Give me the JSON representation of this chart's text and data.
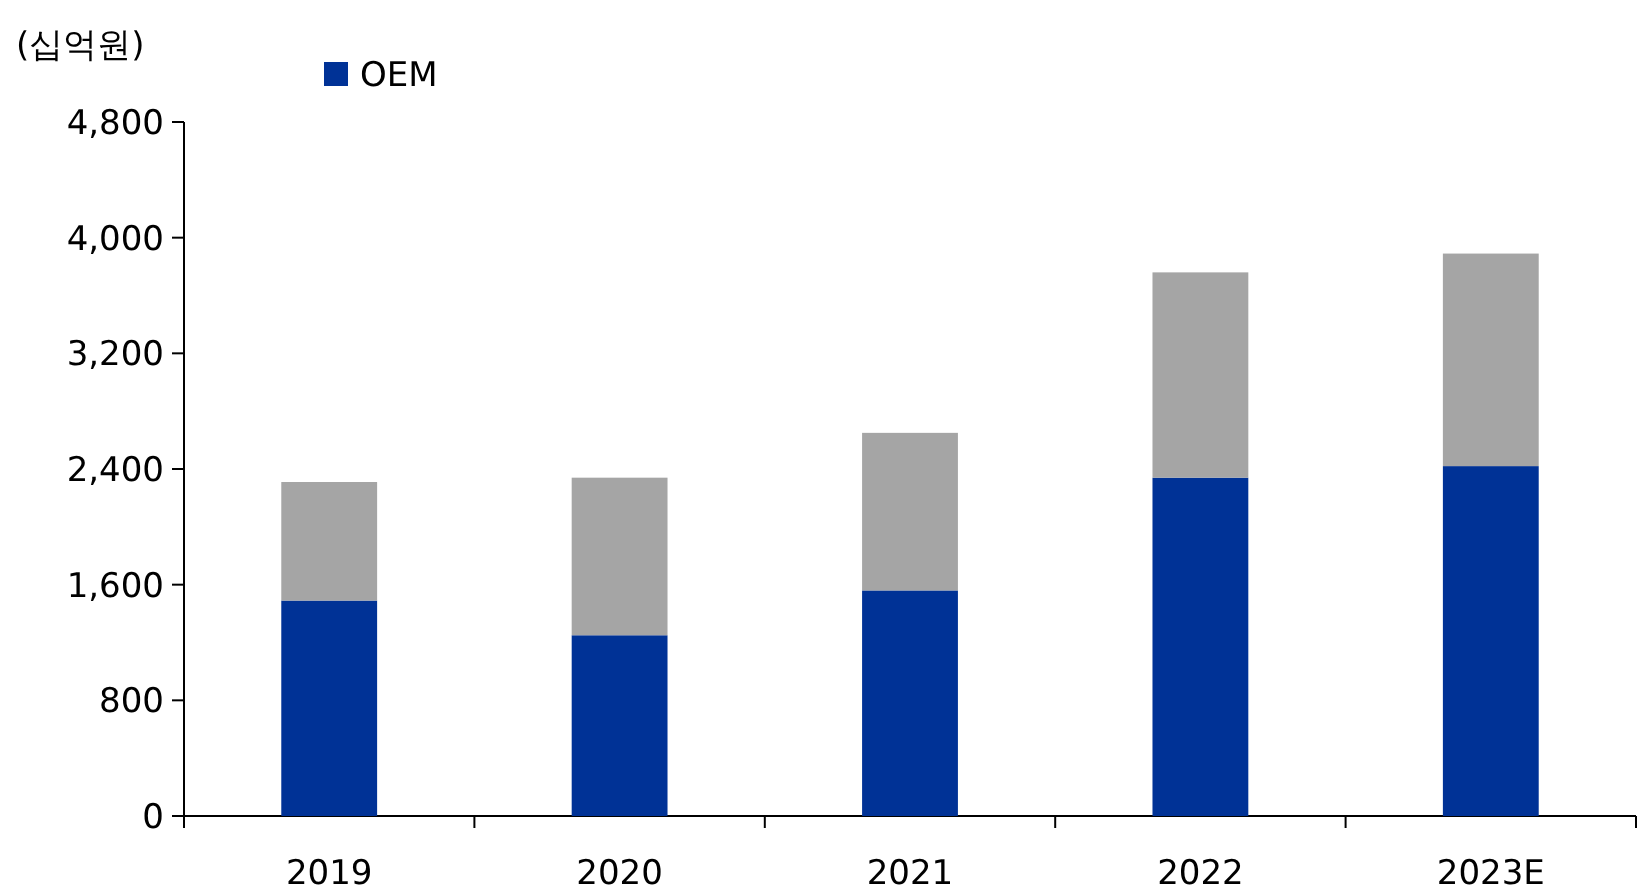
{
  "chart_data": {
    "type": "bar",
    "ylabel": "(십억원)",
    "stacked": true,
    "legend": "top left",
    "categories": [
      "2019",
      "2020",
      "2021",
      "2022",
      "2023E"
    ],
    "series": [
      {
        "name": "OEM",
        "color": "#003296",
        "values": [
          1490,
          1250,
          1560,
          2340,
          2420
        ]
      },
      {
        "color": "#a5a5a5",
        "values": [
          820,
          1090,
          1090,
          1420,
          1470
        ]
      }
    ],
    "ylim": [
      0,
      4800
    ],
    "yticks": [
      {
        "value": 0,
        "label": "0"
      },
      {
        "value": 800,
        "label": "800"
      },
      {
        "value": 1600,
        "label": "1,600"
      },
      {
        "value": 2400,
        "label": "2,400"
      },
      {
        "value": 3200,
        "label": "3,200"
      },
      {
        "value": 4000,
        "label": "4,000"
      },
      {
        "value": 4800,
        "label": "4,800"
      }
    ]
  }
}
